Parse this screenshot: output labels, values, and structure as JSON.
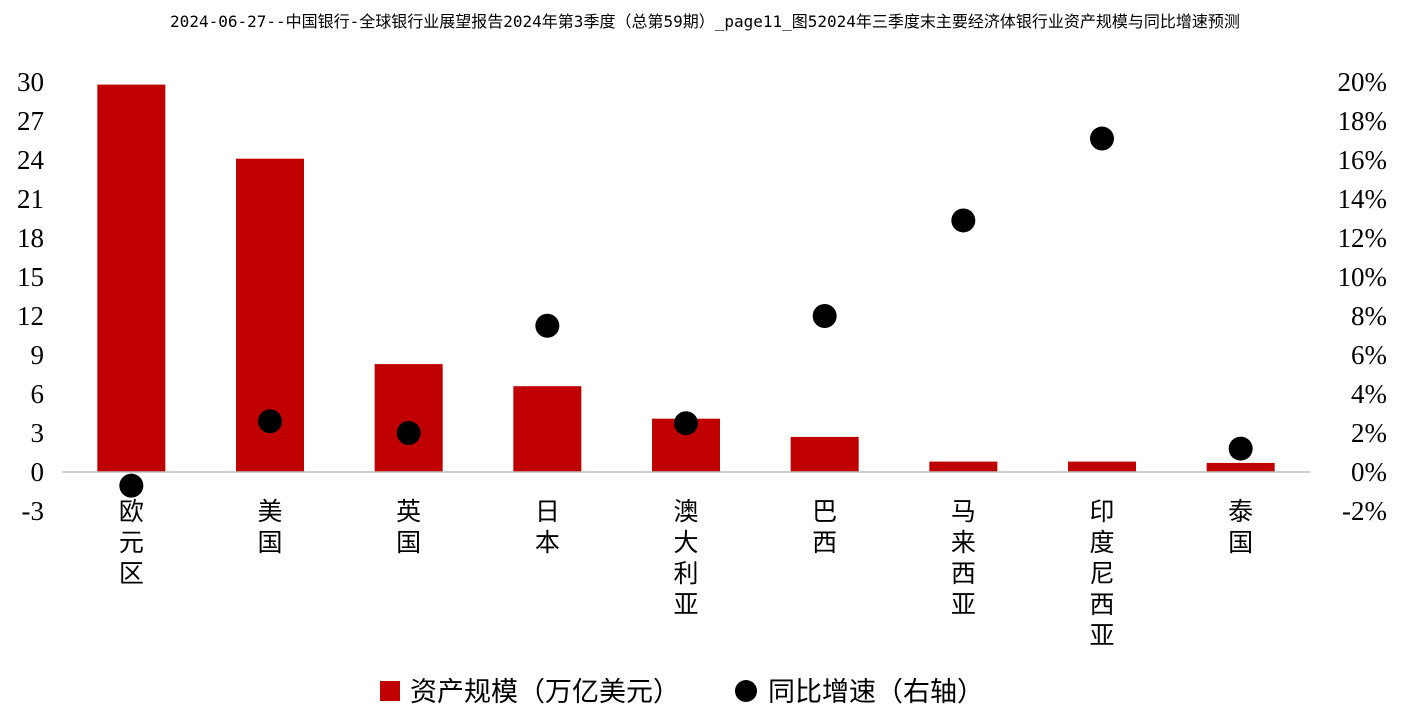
{
  "header": {
    "title": "2024-06-27--中国银行-全球银行业展望报告2024年第3季度（总第59期）_page11_图52024年三季度末主要经济体银行业资产规模与同比增速预测"
  },
  "colors": {
    "bar": "#C00000",
    "marker": "#000000",
    "axis": "#BFBFBF"
  },
  "chart_data": {
    "type": "bar",
    "title": "",
    "categories": [
      "欧元区",
      "美国",
      "英国",
      "日本",
      "澳大利亚",
      "巴西",
      "马来西亚",
      "印度尼西亚",
      "泰国"
    ],
    "series": [
      {
        "name": "资产规模（万亿美元）",
        "type": "bar",
        "axis": "left",
        "values": [
          29.8,
          24.1,
          8.3,
          6.6,
          4.1,
          2.7,
          0.8,
          0.8,
          0.7
        ]
      },
      {
        "name": "同比增速（右轴）",
        "type": "scatter",
        "axis": "right",
        "values": [
          -0.7,
          2.6,
          2.0,
          7.5,
          2.5,
          8.0,
          12.9,
          17.1,
          1.2
        ]
      }
    ],
    "y_left": {
      "min": -3,
      "max": 30,
      "ticks": [
        30,
        27,
        24,
        21,
        18,
        15,
        12,
        9,
        6,
        3,
        0,
        -3
      ],
      "tick_labels": [
        "30",
        "27",
        "24",
        "21",
        "18",
        "15",
        "12",
        "9",
        "6",
        "3",
        "0",
        "-3"
      ]
    },
    "y_right": {
      "min": -2,
      "max": 20,
      "ticks": [
        20,
        18,
        16,
        14,
        12,
        10,
        8,
        6,
        4,
        2,
        0,
        -2
      ],
      "tick_labels": [
        "20%",
        "18%",
        "16%",
        "14%",
        "12%",
        "10%",
        "8%",
        "6%",
        "4%",
        "2%",
        "0%",
        "-2%"
      ]
    },
    "legend": {
      "position": "bottom",
      "items": [
        "资产规模（万亿美元）",
        "同比增速（右轴）"
      ]
    },
    "grid": false
  }
}
